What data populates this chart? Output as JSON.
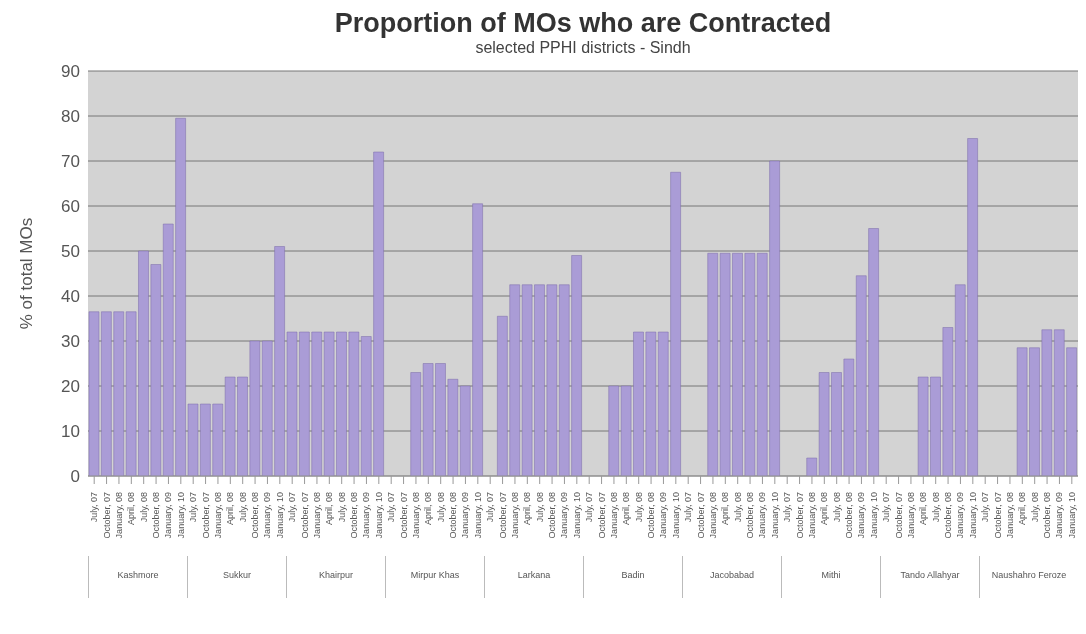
{
  "chart_data": {
    "type": "bar",
    "title": "Proportion of MOs who are Contracted",
    "subtitle": "selected PPHI districts - Sindh",
    "ylabel": "% of total MOs",
    "categories": [
      "July, 07",
      "October, 07",
      "January, 08",
      "April, 08",
      "July, 08",
      "October, 08",
      "January, 09",
      "January, 10",
      "July, 07",
      "October, 07",
      "January, 08",
      "April, 08",
      "July, 08",
      "October, 08",
      "January, 09",
      "January, 10",
      "July, 07",
      "October, 07",
      "January, 08",
      "April, 08",
      "July, 08",
      "October, 08",
      "January, 09",
      "January, 10",
      "July, 07",
      "October, 07",
      "January, 08",
      "April, 08",
      "July, 08",
      "October, 08",
      "January, 09",
      "January, 10",
      "July, 07",
      "October, 07",
      "January, 08",
      "April, 08",
      "July, 08",
      "October, 08",
      "January, 09",
      "January, 10",
      "July, 07",
      "October, 07",
      "January, 08",
      "April, 08",
      "July, 08",
      "October, 08",
      "January, 09",
      "January, 10",
      "July, 07",
      "October, 07",
      "January, 08",
      "April, 08",
      "July, 08",
      "October, 08",
      "January, 09",
      "January, 10",
      "July, 07",
      "October, 07",
      "January, 08",
      "April, 08",
      "July, 08",
      "October, 08",
      "January, 09",
      "January, 10",
      "July, 07",
      "October, 07",
      "January, 08",
      "April, 08",
      "July, 08",
      "October, 08",
      "January, 09",
      "January, 10",
      "July, 07",
      "October, 07",
      "January, 08",
      "April, 08",
      "July, 08",
      "October, 08",
      "January, 09",
      "January, 10"
    ],
    "values": [
      36.5,
      36.5,
      36.5,
      36.5,
      50,
      47,
      56,
      79.5,
      16,
      16,
      16,
      22,
      22,
      30,
      30,
      51,
      32,
      32,
      32,
      32,
      32,
      32,
      31,
      72,
      null,
      null,
      23,
      25,
      25,
      21.5,
      20,
      60.5,
      null,
      35.5,
      42.5,
      42.5,
      42.5,
      42.5,
      42.5,
      49,
      null,
      null,
      20,
      20,
      32,
      32,
      32,
      67.5,
      null,
      null,
      49.5,
      49.5,
      49.5,
      49.5,
      49.5,
      70,
      null,
      null,
      4,
      23,
      23,
      26,
      44.5,
      55,
      null,
      null,
      null,
      22,
      22,
      33,
      42.5,
      75,
      null,
      null,
      null,
      28.5,
      28.5,
      32.5,
      32.5,
      28.5
    ],
    "color": "#aa9cd6",
    "ylim": [
      0,
      90
    ],
    "yticks": [
      0,
      10,
      20,
      30,
      40,
      50,
      60,
      70,
      80,
      90
    ],
    "grid": "y",
    "legend": false,
    "annotations": [
      "Kashmore",
      "Sukkur",
      "Khairpur",
      "Mirpur Khas",
      "Larkana",
      "Badin",
      "Jacobabad",
      "Mithi",
      "Tando Allahyar",
      "Naushahro Feroze"
    ]
  }
}
